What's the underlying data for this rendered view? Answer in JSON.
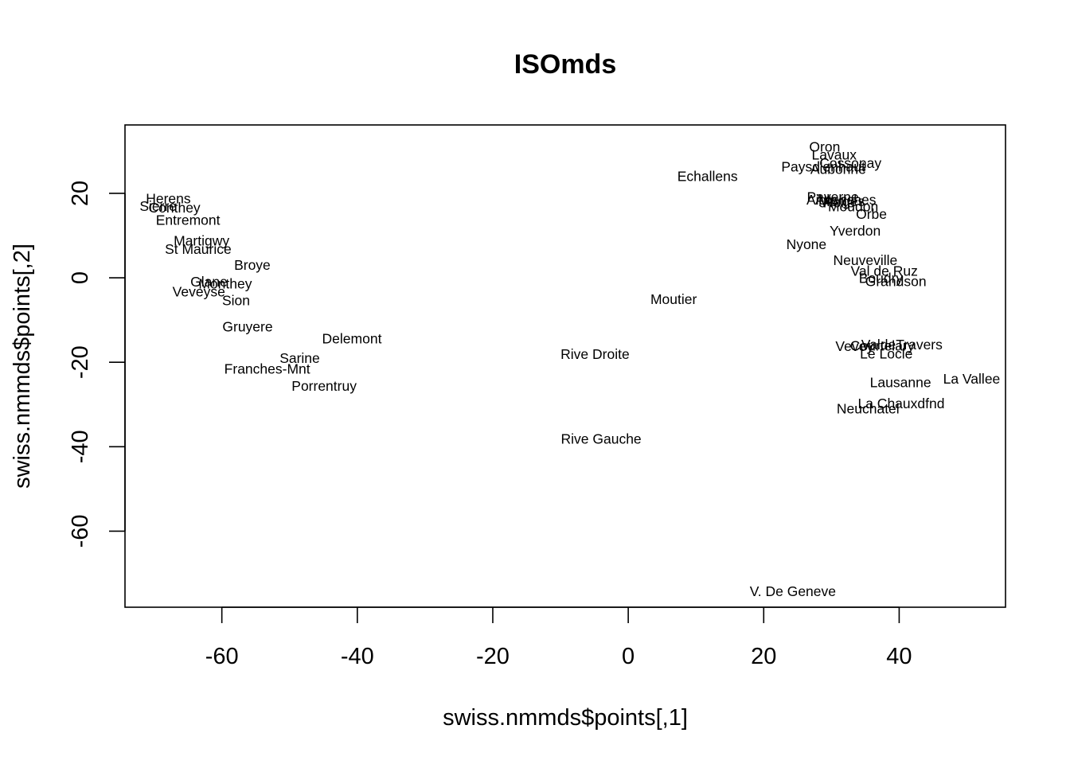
{
  "chart_data": {
    "type": "scatter",
    "title": "ISOmds",
    "xlabel": "swiss.nmmds$points[,1]",
    "ylabel": "swiss.nmmds$points[,2]",
    "xlim": [
      -74.3,
      55.7
    ],
    "ylim": [
      -78,
      36.2
    ],
    "x_ticks": [
      -60,
      -40,
      -20,
      0,
      20,
      40
    ],
    "y_ticks": [
      -60,
      -40,
      -20,
      0,
      20
    ],
    "x_tick_labels": [
      "-60",
      "-40",
      "-20",
      "0",
      "20",
      "40"
    ],
    "y_tick_labels": [
      "-60",
      "-40",
      "-20",
      "0",
      "20"
    ],
    "grid": false,
    "points": [
      {
        "label": "Courtelary",
        "x": 37.5,
        "y": -16.1
      },
      {
        "label": "Delemont",
        "x": -40.8,
        "y": -14.4
      },
      {
        "label": "Franches-Mnt",
        "x": -53.3,
        "y": -21.6
      },
      {
        "label": "Moutier",
        "x": 6.7,
        "y": -5.1
      },
      {
        "label": "Neuveville",
        "x": 35.0,
        "y": 4.2
      },
      {
        "label": "Porrentruy",
        "x": -44.9,
        "y": -25.6
      },
      {
        "label": "Broye",
        "x": -55.5,
        "y": 3.0
      },
      {
        "label": "Glane",
        "x": -61.9,
        "y": -0.9
      },
      {
        "label": "Gruyere",
        "x": -56.2,
        "y": -11.6
      },
      {
        "label": "Sarine",
        "x": -48.5,
        "y": -19.0
      },
      {
        "label": "Veveyse",
        "x": -63.4,
        "y": -3.3
      },
      {
        "label": "Aigle",
        "x": 28.6,
        "y": 18.5
      },
      {
        "label": "Aubonne",
        "x": 31.0,
        "y": 25.7
      },
      {
        "label": "Avenches",
        "x": 32.1,
        "y": 18.5
      },
      {
        "label": "Cossonay",
        "x": 32.8,
        "y": 27.2
      },
      {
        "label": "Echallens",
        "x": 11.7,
        "y": 24.0
      },
      {
        "label": "Grandson",
        "x": 39.5,
        "y": -0.8
      },
      {
        "label": "Lausanne",
        "x": 40.2,
        "y": -24.8
      },
      {
        "label": "La Vallee",
        "x": 50.7,
        "y": -23.9
      },
      {
        "label": "Lavaux",
        "x": 30.4,
        "y": 29.1
      },
      {
        "label": "Morges",
        "x": 31.5,
        "y": 18.1
      },
      {
        "label": "Moudon",
        "x": 33.2,
        "y": 16.9
      },
      {
        "label": "Nyone",
        "x": 26.3,
        "y": 7.9
      },
      {
        "label": "Orbe",
        "x": 35.9,
        "y": 15.1
      },
      {
        "label": "Oron",
        "x": 29.0,
        "y": 31.0
      },
      {
        "label": "Payerne",
        "x": 30.2,
        "y": 19.1
      },
      {
        "label": "Paysd'enhaut",
        "x": 28.8,
        "y": 26.3
      },
      {
        "label": "Rolle",
        "x": 31.1,
        "y": 17.8
      },
      {
        "label": "Vevey",
        "x": 33.4,
        "y": -16.2
      },
      {
        "label": "Yverdon",
        "x": 33.5,
        "y": 11.1
      },
      {
        "label": "Conthey",
        "x": -67.0,
        "y": 16.6
      },
      {
        "label": "Entremont",
        "x": -65.0,
        "y": 13.7
      },
      {
        "label": "Herens",
        "x": -67.9,
        "y": 18.8
      },
      {
        "label": "Martigwy",
        "x": -63.0,
        "y": 8.8
      },
      {
        "label": "Monthey",
        "x": -59.5,
        "y": -1.4
      },
      {
        "label": "St Maurice",
        "x": -63.5,
        "y": 6.8
      },
      {
        "label": "Sierre",
        "x": -69.4,
        "y": 17.0
      },
      {
        "label": "Sion",
        "x": -57.9,
        "y": -5.4
      },
      {
        "label": "Boudry",
        "x": 37.3,
        "y": -0.1
      },
      {
        "label": "La Chauxdfnd",
        "x": 40.3,
        "y": -29.8
      },
      {
        "label": "Le Locle",
        "x": 38.1,
        "y": -18.0
      },
      {
        "label": "Neuchatel",
        "x": 35.4,
        "y": -31.0
      },
      {
        "label": "Val de Ruz",
        "x": 37.8,
        "y": 1.6
      },
      {
        "label": "ValdeTravers",
        "x": 40.4,
        "y": -15.8
      },
      {
        "label": "V. De Geneve",
        "x": 24.3,
        "y": -74.2
      },
      {
        "label": "Rive Droite",
        "x": -4.9,
        "y": -18.1
      },
      {
        "label": "Rive Gauche",
        "x": -4.0,
        "y": -38.1
      }
    ]
  }
}
